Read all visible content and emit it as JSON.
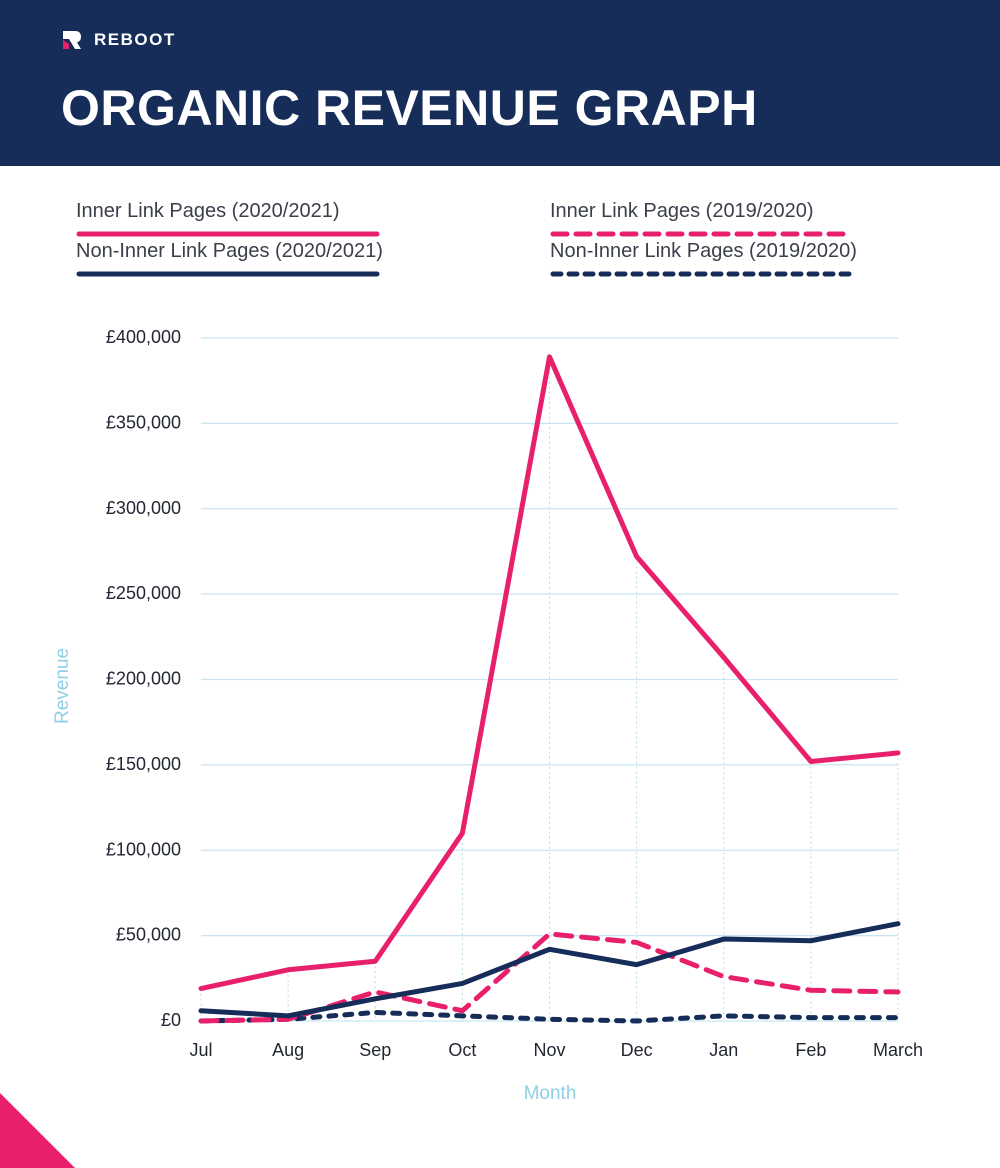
{
  "brand": {
    "name": "REBOOT",
    "logo_icon": "reboot-logo-icon"
  },
  "title": "ORGANIC REVENUE GRAPH",
  "colors": {
    "header_bg": "#162d5a",
    "inner_link": "#e8206b",
    "non_inner_link": "#162d5a",
    "grid": "#c8e6f2",
    "axis_title": "#8fd0e8",
    "tick_text": "#222733"
  },
  "chart_data": {
    "type": "line",
    "title": "ORGANIC REVENUE GRAPH",
    "xlabel": "Month",
    "ylabel": "Revenue",
    "categories": [
      "Jul",
      "Aug",
      "Sep",
      "Oct",
      "Nov",
      "Dec",
      "Jan",
      "Feb",
      "March"
    ],
    "ylim": [
      0,
      400000
    ],
    "yticks": [
      0,
      50000,
      100000,
      150000,
      200000,
      250000,
      300000,
      350000,
      400000
    ],
    "ytick_labels": [
      "£0",
      "£50,000",
      "£100,000",
      "£150,000",
      "£200,000",
      "£250,000",
      "£300,000",
      "£350,000",
      "£400,000"
    ],
    "grid": true,
    "legend_position": "top",
    "series": [
      {
        "name": "Inner Link Pages (2020/2021)",
        "color": "#e8206b",
        "style": "solid",
        "values": [
          19000,
          30000,
          35000,
          110000,
          389000,
          272000,
          213000,
          152000,
          157000
        ]
      },
      {
        "name": "Non-Inner Link Pages (2020/2021)",
        "color": "#162d5a",
        "style": "solid",
        "values": [
          6000,
          3000,
          13000,
          22000,
          42000,
          33000,
          48000,
          47000,
          57000
        ]
      },
      {
        "name": "Inner Link Pages (2019/2020)",
        "color": "#e8206b",
        "style": "dashed",
        "values": [
          0,
          1000,
          17000,
          6000,
          51000,
          46000,
          26000,
          18000,
          17000
        ]
      },
      {
        "name": "Non-Inner Link Pages (2019/2020)",
        "color": "#162d5a",
        "style": "dotted",
        "values": [
          0,
          1000,
          5000,
          3000,
          1000,
          0,
          3000,
          2000,
          2000
        ]
      }
    ]
  }
}
